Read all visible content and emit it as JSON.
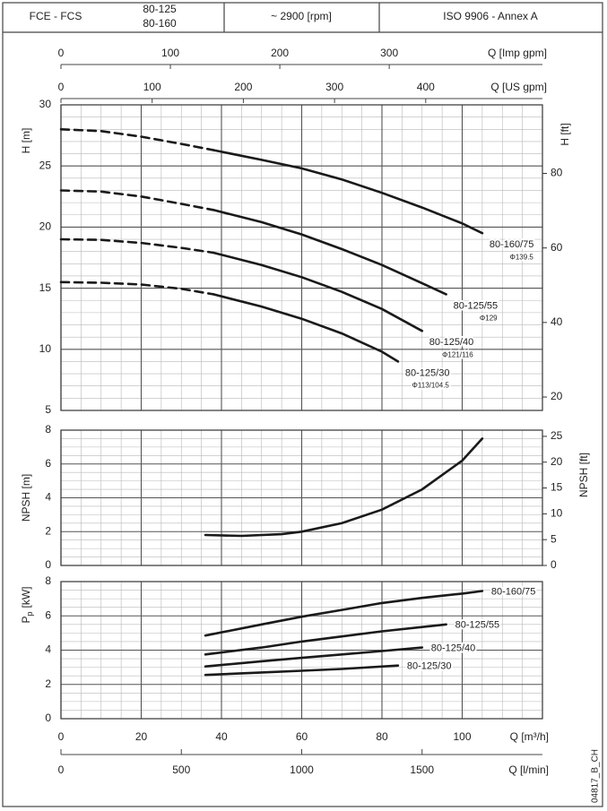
{
  "header": {
    "model": "FCE - FCS",
    "variants": [
      "80-125",
      "80-160"
    ],
    "speed": "~ 2900 [rpm]",
    "standard": "ISO 9906 - Annex A"
  },
  "top_axes": [
    {
      "label": "Q [Imp gpm]",
      "xlim": [
        0,
        440
      ],
      "xticks": [
        0,
        100,
        200,
        300
      ]
    },
    {
      "label": "Q [US gpm]",
      "xlim": [
        0,
        528
      ],
      "xticks": [
        0,
        100,
        200,
        300,
        400
      ]
    }
  ],
  "bottom_axes": [
    {
      "label": "Q [m³/h]",
      "xlim": [
        0,
        120
      ],
      "xticks": [
        0,
        20,
        40,
        60,
        80,
        100
      ],
      "xminor": 5
    },
    {
      "label": "Q [l/min]",
      "xlim": [
        0,
        2000
      ],
      "xticks": [
        0,
        500,
        1000,
        1500
      ]
    }
  ],
  "chart_data": [
    {
      "type": "line",
      "ylabel": "H [m]",
      "ylim": [
        5,
        30
      ],
      "yticks": [
        5,
        10,
        15,
        20,
        25,
        30
      ],
      "yminor": 1,
      "y2label": "H [ft]",
      "y2lim": [
        16.4,
        98.4
      ],
      "y2ticks": [
        20,
        40,
        60,
        80
      ],
      "color": "#1a1a1a",
      "series": [
        {
          "name": "80-160/75",
          "diameter": "Φ139.5",
          "segments": [
            {
              "style": "dashed",
              "x": [
                0,
                10,
                20,
                30,
                38
              ],
              "values": [
                28,
                27.85,
                27.4,
                26.8,
                26.3
              ]
            },
            {
              "style": "solid",
              "x": [
                38,
                50,
                60,
                70,
                80,
                90,
                100,
                105
              ],
              "values": [
                26.3,
                25.5,
                24.8,
                23.9,
                22.8,
                21.6,
                20.3,
                19.5
              ]
            }
          ]
        },
        {
          "name": "80-125/55",
          "diameter": "Φ129",
          "segments": [
            {
              "style": "dashed",
              "x": [
                0,
                10,
                20,
                30,
                38
              ],
              "values": [
                23,
                22.9,
                22.5,
                21.9,
                21.4
              ]
            },
            {
              "style": "solid",
              "x": [
                38,
                50,
                60,
                70,
                80,
                90,
                96
              ],
              "values": [
                21.4,
                20.4,
                19.4,
                18.2,
                16.9,
                15.4,
                14.5
              ]
            }
          ]
        },
        {
          "name": "80-125/40",
          "diameter": "Φ121/116",
          "segments": [
            {
              "style": "dashed",
              "x": [
                0,
                10,
                20,
                30,
                38
              ],
              "values": [
                19,
                18.95,
                18.7,
                18.3,
                17.9
              ]
            },
            {
              "style": "solid",
              "x": [
                38,
                50,
                60,
                70,
                80,
                90
              ],
              "values": [
                17.9,
                16.9,
                15.9,
                14.7,
                13.3,
                11.5
              ]
            }
          ]
        },
        {
          "name": "80-125/30",
          "diameter": "Φ113/104.5",
          "segments": [
            {
              "style": "dashed",
              "x": [
                0,
                10,
                20,
                30,
                38
              ],
              "values": [
                15.5,
                15.45,
                15.3,
                14.95,
                14.5
              ]
            },
            {
              "style": "solid",
              "x": [
                38,
                50,
                60,
                70,
                80,
                84
              ],
              "values": [
                14.5,
                13.5,
                12.5,
                11.3,
                9.8,
                9
              ]
            }
          ]
        }
      ]
    },
    {
      "type": "line",
      "ylabel": "NPSH [m]",
      "ylim": [
        0,
        8
      ],
      "yticks": [
        0,
        2,
        4,
        6,
        8
      ],
      "yminor": 0.5,
      "y2label": "NPSH [ft]",
      "y2lim": [
        0,
        26.2
      ],
      "y2ticks": [
        0,
        5,
        10,
        15,
        20,
        25
      ],
      "color": "#1a1a1a",
      "series": [
        {
          "segments": [
            {
              "style": "solid",
              "x": [
                36,
                45,
                55,
                60,
                70,
                80,
                90,
                100,
                105
              ],
              "values": [
                1.8,
                1.75,
                1.85,
                2.0,
                2.5,
                3.3,
                4.5,
                6.2,
                7.5
              ]
            }
          ]
        }
      ]
    },
    {
      "type": "line",
      "ylabel": {
        "text": "P",
        "sub": "p",
        "unit": "[kW]"
      },
      "ylim": [
        0,
        8
      ],
      "yticks": [
        0,
        2,
        4,
        6,
        8
      ],
      "yminor": 0.5,
      "color": "#1a1a1a",
      "series": [
        {
          "name": "80-160/75",
          "segments": [
            {
              "style": "solid",
              "x": [
                36,
                50,
                60,
                70,
                80,
                90,
                100,
                105
              ],
              "values": [
                4.85,
                5.5,
                5.95,
                6.35,
                6.75,
                7.05,
                7.3,
                7.45
              ]
            }
          ]
        },
        {
          "name": "80-125/55",
          "segments": [
            {
              "style": "solid",
              "x": [
                36,
                50,
                60,
                70,
                80,
                90,
                96
              ],
              "values": [
                3.75,
                4.15,
                4.5,
                4.8,
                5.1,
                5.35,
                5.5
              ]
            }
          ]
        },
        {
          "name": "80-125/40",
          "segments": [
            {
              "style": "solid",
              "x": [
                36,
                50,
                60,
                70,
                80,
                90
              ],
              "values": [
                3.05,
                3.35,
                3.55,
                3.75,
                3.95,
                4.15
              ]
            }
          ]
        },
        {
          "name": "80-125/30",
          "segments": [
            {
              "style": "solid",
              "x": [
                36,
                50,
                60,
                70,
                84
              ],
              "values": [
                2.55,
                2.7,
                2.8,
                2.9,
                3.1
              ]
            }
          ]
        }
      ]
    }
  ],
  "code": "04817_B_CH"
}
